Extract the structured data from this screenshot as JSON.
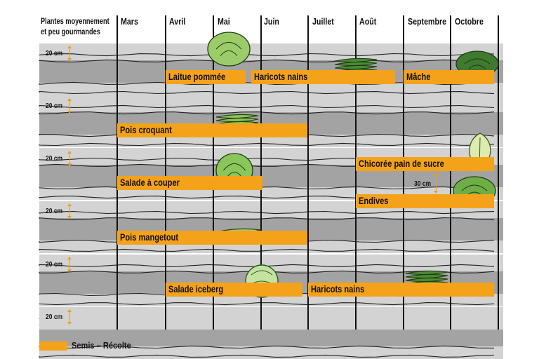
{
  "title_lines": [
    "Plantes moyennement",
    "et peu gourmandes"
  ],
  "months": [
    "Mars",
    "Avril",
    "Mai",
    "Juin",
    "Juillet",
    "Août",
    "Septembre",
    "Octobre"
  ],
  "row_spacing_label": "20 cm",
  "inner_spacing_label": "30 cm",
  "crops": [
    {
      "label": "Laitue pommée",
      "icon": "lettuce-icon"
    },
    {
      "label": "Haricots nains",
      "icon": "green-beans-icon"
    },
    {
      "label": "Mâche",
      "icon": "lambs-lettuce-icon"
    },
    {
      "label": "Pois croquant",
      "icon": "pea-pods-icon"
    },
    {
      "label": "Chicorée pain de sucre",
      "icon": "chicory-icon"
    },
    {
      "label": "Salade à couper",
      "icon": "leaf-lettuce-icon"
    },
    {
      "label": "Endives",
      "icon": "endive-icon"
    },
    {
      "label": "Pois mangetout",
      "icon": "open-pea-pod-icon"
    },
    {
      "label": "Salade iceberg",
      "icon": "iceberg-lettuce-icon"
    },
    {
      "label": "Haricots nains",
      "icon": "green-beans-icon"
    }
  ],
  "legend": {
    "label": "Semis – Récolte"
  },
  "colors": {
    "bar": "#f5a21b",
    "bed_light": "#d3d3d3",
    "bed_dark": "#a3a3a3",
    "arrow": "#f19c12"
  }
}
